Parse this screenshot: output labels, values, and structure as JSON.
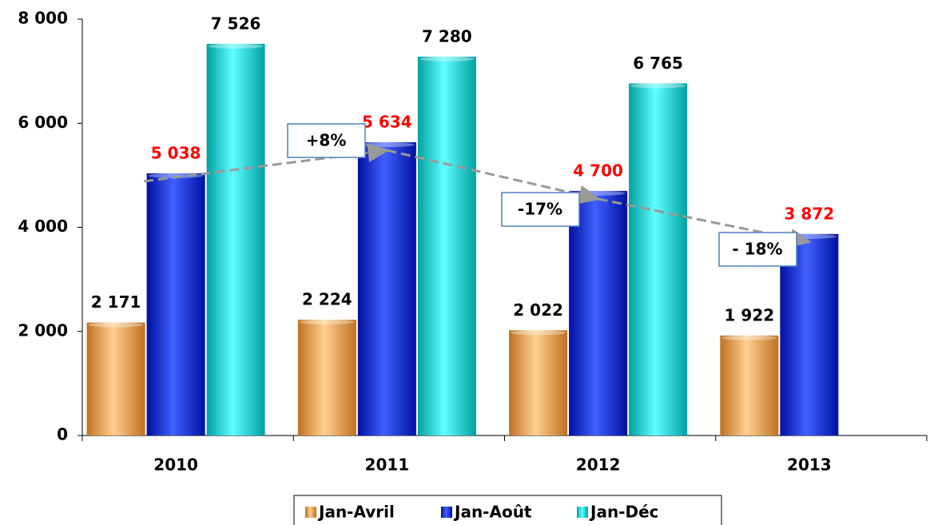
{
  "chart_data": {
    "type": "bar",
    "categories": [
      "2010",
      "2011",
      "2012",
      "2013"
    ],
    "series": [
      {
        "name": "Jan-Avril",
        "color": "#f0a050",
        "label_color": "#000000",
        "values": [
          2171,
          2224,
          2022,
          1922
        ],
        "value_labels": [
          "2 171",
          "2 224",
          "2 022",
          "1 922"
        ]
      },
      {
        "name": "Jan-Août",
        "color": "#2233d8",
        "label_color": "#ff0000",
        "values": [
          5038,
          5634,
          4700,
          3872
        ],
        "value_labels": [
          "5 038",
          "5 634",
          "4 700",
          "3 872"
        ]
      },
      {
        "name": "Jan-Déc",
        "color": "#22d4d4",
        "label_color": "#000000",
        "values": [
          7526,
          7280,
          6765,
          null
        ],
        "value_labels": [
          "7 526",
          "7 280",
          "6 765",
          null
        ]
      }
    ],
    "ylim": [
      0,
      8000
    ],
    "yticks": [
      {
        "value": 0,
        "label": "0"
      },
      {
        "value": 2000,
        "label": "2 000"
      },
      {
        "value": 4000,
        "label": "4 000"
      },
      {
        "value": 6000,
        "label": "6 000"
      },
      {
        "value": 8000,
        "label": "8 000"
      }
    ],
    "annotations": [
      "+8%",
      "-17%",
      "- 18%"
    ],
    "legend": "bottom"
  }
}
